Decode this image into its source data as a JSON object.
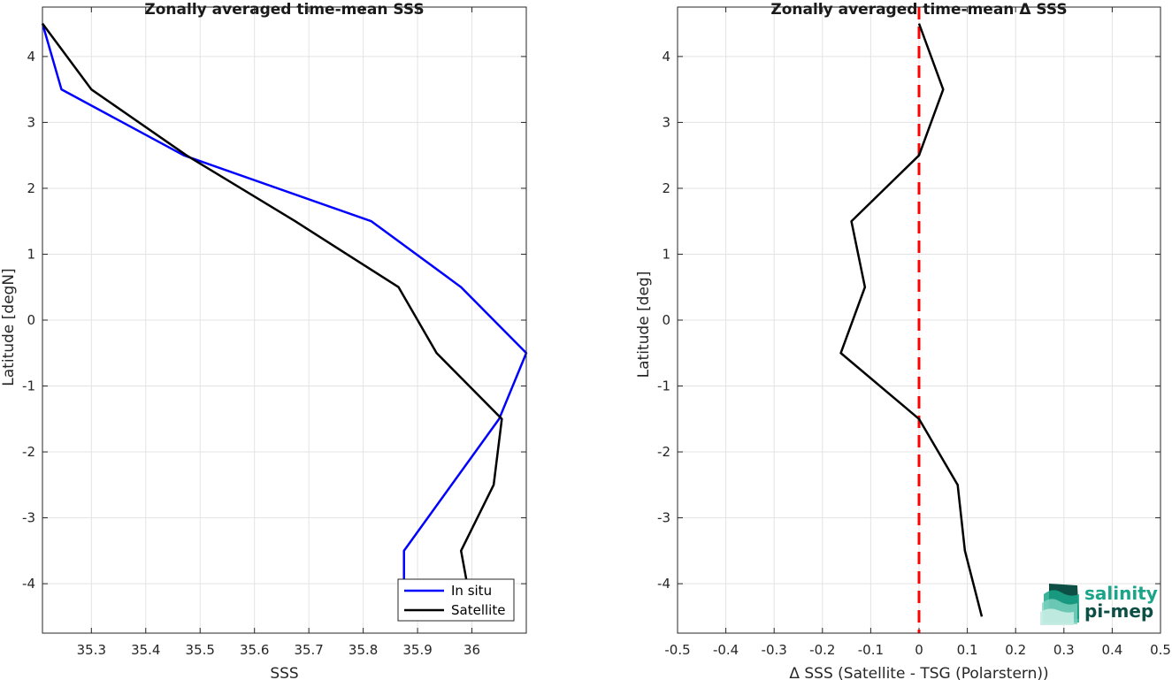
{
  "chart_data": [
    {
      "type": "line",
      "title": "Zonally averaged time-mean SSS",
      "xlabel": "SSS",
      "ylabel": "Latitude [degN]",
      "xlim": [
        35.21,
        36.1
      ],
      "ylim": [
        -4.75,
        4.75
      ],
      "xticks": [
        35.3,
        35.4,
        35.5,
        35.6,
        35.7,
        35.8,
        35.9,
        36
      ],
      "xtick_labels": [
        "35.3",
        "35.4",
        "35.5",
        "35.6",
        "35.7",
        "35.8",
        "35.9",
        "36"
      ],
      "yticks": [
        4,
        3,
        2,
        1,
        0,
        -1,
        -2,
        -3,
        -4
      ],
      "ytick_labels": [
        "4",
        "3",
        "2",
        "1",
        "0",
        "-1",
        "-2",
        "-3",
        "-4"
      ],
      "grid": true,
      "legend": "bottom-right",
      "series": [
        {
          "name": "In situ",
          "color": "#0000ff",
          "x": [
            35.21,
            35.245,
            35.47,
            35.815,
            35.98,
            36.1,
            36.05,
            35.875,
            35.875
          ],
          "y": [
            4.5,
            3.5,
            2.5,
            1.5,
            0.5,
            -0.5,
            -1.5,
            -3.5,
            -3.95
          ]
        },
        {
          "name": "Satellite",
          "color": "#000000",
          "x": [
            35.21,
            35.3,
            35.475,
            35.675,
            35.865,
            35.935,
            36.055,
            36.04,
            35.98,
            35.99
          ],
          "y": [
            4.5,
            3.5,
            2.5,
            1.5,
            0.5,
            -0.5,
            -1.5,
            -2.5,
            -3.5,
            -3.95
          ]
        }
      ]
    },
    {
      "type": "line",
      "title": "Zonally averaged time-mean Δ SSS",
      "xlabel": "Δ SSS (Satellite - TSG (Polarstern))",
      "ylabel": "Latitude [deg]",
      "xlim": [
        -0.5,
        0.5
      ],
      "ylim": [
        -4.75,
        4.75
      ],
      "xticks": [
        -0.5,
        -0.4,
        -0.3,
        -0.2,
        -0.1,
        0,
        0.1,
        0.2,
        0.3,
        0.4,
        0.5
      ],
      "xtick_labels": [
        "-0.5",
        "-0.4",
        "-0.3",
        "-0.2",
        "-0.1",
        "0",
        "0.1",
        "0.2",
        "0.3",
        "0.4",
        "0.5"
      ],
      "yticks": [
        4,
        3,
        2,
        1,
        0,
        -1,
        -2,
        -3,
        -4
      ],
      "ytick_labels": [
        "4",
        "3",
        "2",
        "1",
        "0",
        "-1",
        "-2",
        "-3",
        "-4"
      ],
      "grid": true,
      "reference_line": {
        "x": 0,
        "color": "#ff0000",
        "style": "dashed"
      },
      "series": [
        {
          "color": "#000000",
          "x": [
            0.0,
            0.05,
            0.0,
            -0.14,
            -0.112,
            -0.162,
            0.0,
            0.08,
            0.095,
            0.13
          ],
          "y": [
            4.5,
            3.5,
            2.5,
            1.5,
            0.5,
            -0.5,
            -1.5,
            -2.5,
            -3.5,
            -4.5
          ]
        }
      ]
    }
  ],
  "logo": {
    "line1": "salinity",
    "line2": "pi-mep",
    "color": "#1aa58a",
    "dark": "#0e4f45"
  }
}
